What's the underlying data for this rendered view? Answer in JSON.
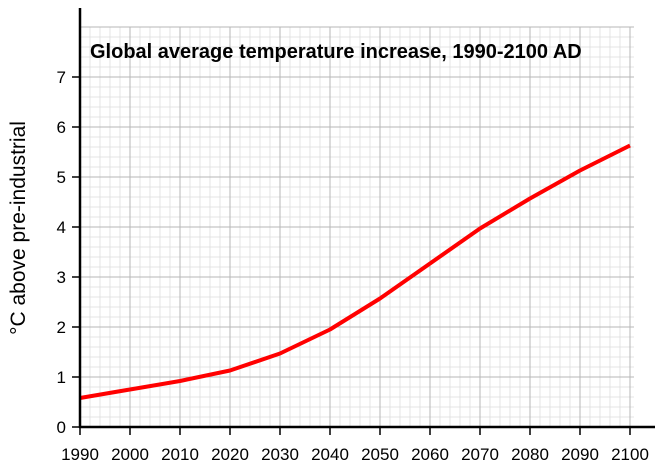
{
  "chart_data": {
    "type": "line",
    "title": "Global average temperature increase, 1990-2100 AD",
    "xlabel": "",
    "ylabel": "°C above pre-industrial",
    "xlim": [
      1990,
      2100
    ],
    "ylim": [
      0,
      8
    ],
    "x_ticks": [
      "1990",
      "2000",
      "2010",
      "2020",
      "2030",
      "2040",
      "2050",
      "2060",
      "2070",
      "2080",
      "2090",
      "2100"
    ],
    "y_ticks": [
      "0",
      "1",
      "2",
      "3",
      "4",
      "5",
      "6",
      "7"
    ],
    "grid": true,
    "legend": "none",
    "series": [
      {
        "color": "#ff0000",
        "x": [
          1990,
          2000,
          2010,
          2020,
          2030,
          2040,
          2050,
          2060,
          2070,
          2080,
          2090,
          2100
        ],
        "y": [
          0.58,
          0.75,
          0.92,
          1.13,
          1.47,
          1.95,
          2.57,
          3.27,
          3.97,
          4.57,
          5.13,
          5.63
        ]
      }
    ]
  }
}
